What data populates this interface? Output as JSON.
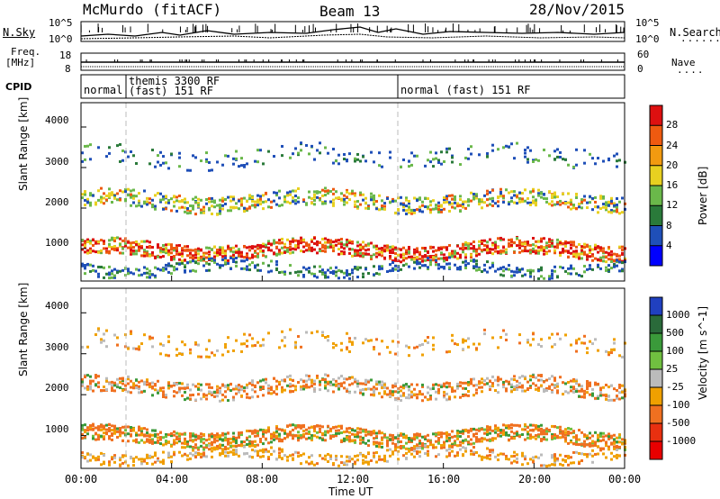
{
  "header": {
    "station": "McMurdo (fitACF)",
    "beam": "Beam 13",
    "date": "28/Nov/2015"
  },
  "panels": {
    "nsky": {
      "left_label": "N.Sky",
      "right_label": "N.Search",
      "left_ticks": [
        "10^5",
        "10^0"
      ],
      "right_ticks": [
        "10^5",
        "10^0"
      ]
    },
    "freq": {
      "left_label_1": "Freq.",
      "left_label_2": "[MHz]",
      "left_ticks": [
        "18",
        "8"
      ],
      "right_label": "Nave",
      "right_ticks": [
        "60",
        "0"
      ]
    },
    "cpid": {
      "label": "CPID",
      "segments": [
        {
          "line1": "normal",
          "line2": ""
        },
        {
          "line1": "themis 3300 RF",
          "line2": "(fast) 151 RF"
        },
        {
          "line1": "normal (fast) 151 RF",
          "line2": ""
        }
      ]
    }
  },
  "chart_data": [
    {
      "type": "heatmap",
      "title": "",
      "xlabel": "",
      "ylabel": "Slant Range [km]",
      "x_ticks": [
        "00:00",
        "04:00",
        "08:00",
        "12:00",
        "16:00",
        "20:00",
        "00:00"
      ],
      "y_ticks": [
        "1000",
        "2000",
        "3000",
        "4000"
      ],
      "ylim": [
        200,
        4600
      ],
      "colorbar": {
        "label": "Power [dB]",
        "ticks": [
          "4",
          "8",
          "12",
          "16",
          "20",
          "24",
          "28"
        ],
        "colors": [
          "#0000ff",
          "#1f4fb8",
          "#2a7a3a",
          "#6ab84a",
          "#e8d020",
          "#f29a10",
          "#ee5a10",
          "#dd1010"
        ]
      },
      "bands": [
        {
          "name": "lower",
          "center_km": 1000,
          "level": "20-28"
        },
        {
          "name": "upper",
          "center_km": 2200,
          "level": "12-20"
        }
      ]
    },
    {
      "type": "heatmap",
      "title": "",
      "xlabel": "Time UT",
      "ylabel": "Slant Range [km]",
      "x_ticks": [
        "00:00",
        "04:00",
        "08:00",
        "12:00",
        "16:00",
        "20:00",
        "00:00"
      ],
      "y_ticks": [
        "1000",
        "2000",
        "3000",
        "4000"
      ],
      "ylim": [
        200,
        4600
      ],
      "colorbar": {
        "label": "Velocity [m s^-1]",
        "ticks": [
          "1000",
          "500",
          "100",
          "25",
          "-25",
          "-100",
          "-500",
          "-1000"
        ],
        "colors": [
          "#2040c0",
          "#2a6a3a",
          "#3a9a3a",
          "#70c040",
          "#bbbbbb",
          "#f0a000",
          "#f07020",
          "#e83010",
          "#e80000"
        ]
      }
    }
  ]
}
